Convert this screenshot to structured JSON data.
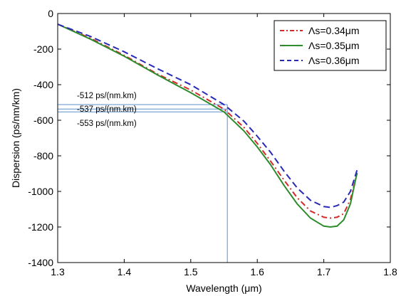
{
  "chart_data": {
    "type": "line",
    "xlabel": "Wavelength (μm)",
    "ylabel": "Dispersion (ps/nm/km)",
    "xlim": [
      1.3,
      1.8
    ],
    "ylim": [
      -1400,
      0
    ],
    "xticks": [
      "1.3",
      "1.4",
      "1.5",
      "1.6",
      "1.7",
      "1.8"
    ],
    "yticks": [
      "0",
      "-200",
      "-400",
      "-600",
      "-800",
      "-1000",
      "-1200",
      "-1400"
    ],
    "grid": false,
    "legend_position": "top-right",
    "series": [
      {
        "name": "Λs=0.34μm",
        "color": "#d42a2a",
        "dash": "dash-dot",
        "x": [
          1.3,
          1.35,
          1.4,
          1.45,
          1.5,
          1.55,
          1.58,
          1.6,
          1.62,
          1.64,
          1.66,
          1.68,
          1.7,
          1.71,
          1.72,
          1.73,
          1.74,
          1.75
        ],
        "y": [
          -60,
          -140,
          -235,
          -340,
          -430,
          -537,
          -640,
          -730,
          -830,
          -935,
          -1035,
          -1110,
          -1145,
          -1150,
          -1145,
          -1125,
          -1045,
          -900
        ]
      },
      {
        "name": "Λs=0.35μm",
        "color": "#2c8c2c",
        "dash": "solid",
        "x": [
          1.3,
          1.35,
          1.4,
          1.45,
          1.5,
          1.55,
          1.58,
          1.6,
          1.62,
          1.64,
          1.66,
          1.68,
          1.7,
          1.71,
          1.72,
          1.73,
          1.74,
          1.75
        ],
        "y": [
          -60,
          -145,
          -240,
          -345,
          -445,
          -553,
          -660,
          -750,
          -850,
          -965,
          -1070,
          -1150,
          -1195,
          -1200,
          -1195,
          -1160,
          -1070,
          -895
        ]
      },
      {
        "name": "Λs=0.36μm",
        "color": "#2a2ab8",
        "dash": "dashed",
        "x": [
          1.3,
          1.35,
          1.4,
          1.45,
          1.5,
          1.55,
          1.58,
          1.6,
          1.62,
          1.64,
          1.66,
          1.68,
          1.7,
          1.71,
          1.72,
          1.73,
          1.74,
          1.75
        ],
        "y": [
          -60,
          -130,
          -215,
          -310,
          -400,
          -512,
          -605,
          -690,
          -780,
          -885,
          -980,
          -1050,
          -1085,
          -1090,
          -1080,
          -1060,
          -1000,
          -880
        ]
      }
    ],
    "reference_wavelength": 1.555,
    "annotations": [
      {
        "text": "-512 ps/(nm.km)",
        "value": -512
      },
      {
        "text": "-537 ps/(nm.km)",
        "value": -537
      },
      {
        "text": "-553 ps/(nm.km)",
        "value": -553
      }
    ],
    "reference_line_color": "#5b8fc9"
  }
}
